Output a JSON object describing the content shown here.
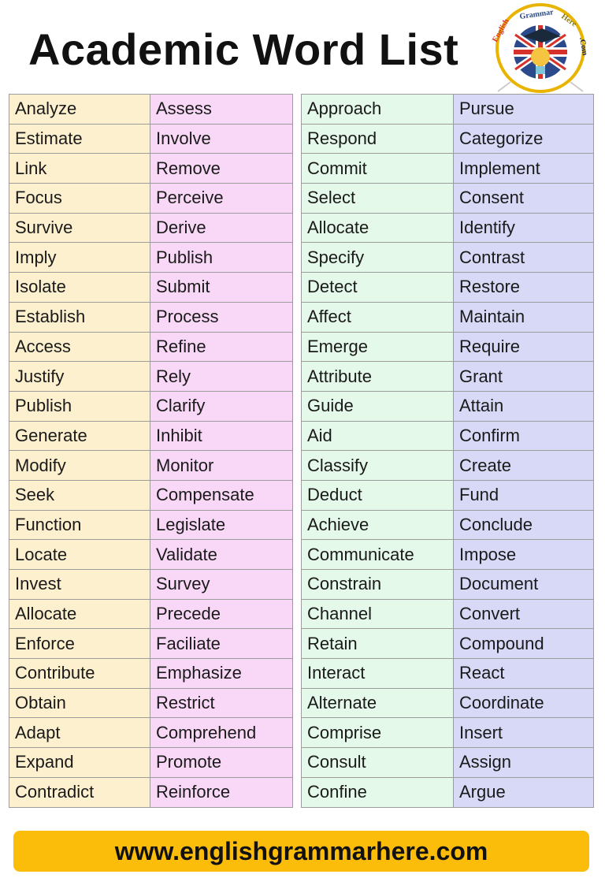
{
  "title": "Academic Word List",
  "logo": {
    "text": "English Grammar Here.Com",
    "colors": {
      "ring": "#e8b400",
      "red": "#d6312a",
      "blue": "#2a4a8c"
    }
  },
  "left_table": {
    "col1": [
      "Analyze",
      "Estimate",
      "Link",
      "Focus",
      "Survive",
      "Imply",
      "Isolate",
      "Establish",
      "Access",
      "Justify",
      "Publish",
      "Generate",
      "Modify",
      "Seek",
      "Function",
      "Locate",
      "Invest",
      "Allocate",
      "Enforce",
      "Contribute",
      "Obtain",
      "Adapt",
      "Expand",
      "Contradict"
    ],
    "col2": [
      "Assess",
      "Involve",
      "Remove",
      "Perceive",
      "Derive",
      "Publish",
      "Submit",
      "Process",
      "Refine",
      "Rely",
      "Clarify",
      "Inhibit",
      "Monitor",
      "Compensate",
      "Legislate",
      "Validate",
      "Survey",
      "Precede",
      "Faciliate",
      "Emphasize",
      "Restrict",
      "Comprehend",
      "Promote",
      "Reinforce"
    ]
  },
  "right_table": {
    "col1": [
      "Approach",
      "Respond",
      "Commit",
      "Select",
      "Allocate",
      "Specify",
      "Detect",
      "Affect",
      "Emerge",
      "Attribute",
      "Guide",
      "Aid",
      "Classify",
      "Deduct",
      "Achieve",
      "Communicate",
      "Constrain",
      "Channel",
      "Retain",
      "Interact",
      "Alternate",
      "Comprise",
      "Consult",
      "Confine"
    ],
    "col2": [
      "Pursue",
      "Categorize",
      "Implement",
      "Consent",
      "Identify",
      "Contrast",
      "Restore",
      "Maintain",
      "Require",
      "Grant",
      "Attain",
      "Confirm",
      "Create",
      "Fund",
      "Conclude",
      "Impose",
      "Document",
      "Convert",
      "Compound",
      "React",
      "Coordinate",
      "Insert",
      "Assign",
      "Argue"
    ]
  },
  "footer": {
    "url": "www.englishgrammarhere.com",
    "color": "#fbbd0a"
  },
  "column_colors": [
    "#fdf0cf",
    "#f8d8f6",
    "#e4f9e9",
    "#d7d9f7"
  ]
}
